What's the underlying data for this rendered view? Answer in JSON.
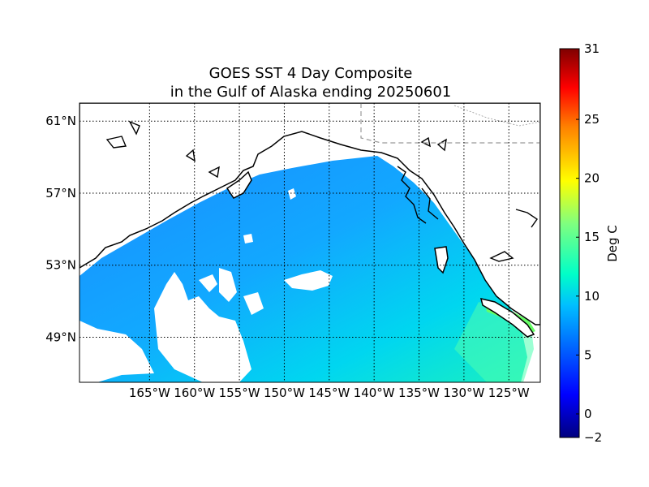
{
  "title": {
    "line1": "GOES SST 4 Day Composite",
    "line2": "in the Gulf of Alaska ending 20250601"
  },
  "map": {
    "region": "Gulf of Alaska",
    "lon_range": [
      -172.8,
      -121.5
    ],
    "lat_range": [
      46.5,
      62.0
    ],
    "lon_ticks": [
      {
        "value": -165,
        "label": "165°W"
      },
      {
        "value": -160,
        "label": "160°W"
      },
      {
        "value": -155,
        "label": "155°W"
      },
      {
        "value": -150,
        "label": "150°W"
      },
      {
        "value": -145,
        "label": "145°W"
      },
      {
        "value": -140,
        "label": "140°W"
      },
      {
        "value": -135,
        "label": "135°W"
      },
      {
        "value": -130,
        "label": "130°W"
      },
      {
        "value": -125,
        "label": "125°W"
      }
    ],
    "lat_ticks": [
      {
        "value": 61,
        "label": "61°N"
      },
      {
        "value": 57,
        "label": "57°N"
      },
      {
        "value": 53,
        "label": "53°N"
      },
      {
        "value": 49,
        "label": "49°N"
      }
    ],
    "grid": true,
    "ocean_colors": {
      "cold": "#1e90ff",
      "mid": "#00bfff",
      "warm": "#00f5d4",
      "coastal": "#66ff66"
    },
    "no_data_color": "#ffffff",
    "coast_color": "#000000"
  },
  "colorbar": {
    "label": "Deg C",
    "min": -2,
    "max": 31,
    "ticks": [
      {
        "value": 31,
        "label": "31"
      },
      {
        "value": 25,
        "label": "25"
      },
      {
        "value": 20,
        "label": "20"
      },
      {
        "value": 15,
        "label": "15"
      },
      {
        "value": 10,
        "label": "10"
      },
      {
        "value": 5,
        "label": "5"
      },
      {
        "value": 0,
        "label": "0"
      },
      {
        "value": -2,
        "label": "−2"
      }
    ],
    "colormap": "jet"
  }
}
